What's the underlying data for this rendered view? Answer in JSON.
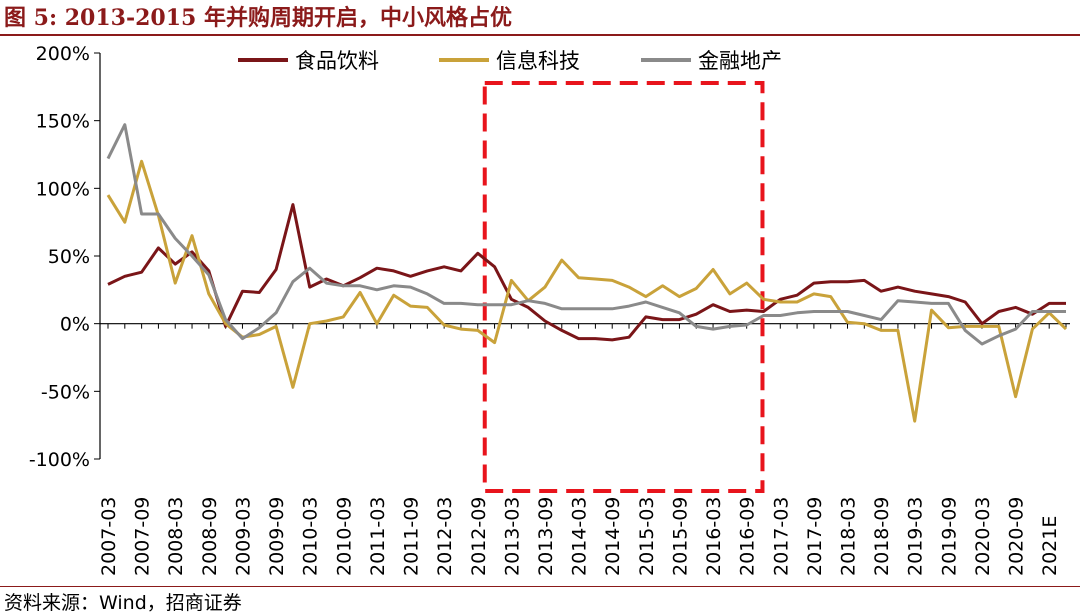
{
  "figure": {
    "title": "图 5: 2013-2015 年并购周期开启，中小风格占优",
    "source": "资料来源：Wind，招商证券"
  },
  "chart_data": {
    "type": "line",
    "ylim": [
      -100,
      200
    ],
    "y_ticks": [
      "200%",
      "150%",
      "100%",
      "50%",
      "0%",
      "-50%",
      "-100%"
    ],
    "y_tick_values": [
      200,
      150,
      100,
      50,
      0,
      -50,
      -100
    ],
    "grid": false,
    "legend_position": "top",
    "x_labels": [
      "2007-03",
      "2007-09",
      "2008-03",
      "2008-09",
      "2009-03",
      "2009-09",
      "2010-03",
      "2010-09",
      "2011-03",
      "2011-09",
      "2012-03",
      "2012-09",
      "2013-03",
      "2013-09",
      "2014-03",
      "2014-09",
      "2015-03",
      "2015-09",
      "2016-03",
      "2016-09",
      "2017-03",
      "2017-09",
      "2018-03",
      "2018-09",
      "2019-03",
      "2019-09",
      "2020-03",
      "2020-09",
      "2021E"
    ],
    "x_label_positions": [
      0,
      2,
      4,
      6,
      8,
      10,
      12,
      14,
      16,
      18,
      20,
      22,
      24,
      26,
      28,
      30,
      32,
      34,
      36,
      38,
      40,
      42,
      44,
      46,
      48,
      50,
      52,
      54,
      56
    ],
    "n_points": 58,
    "highlight": {
      "from_index": 22,
      "to_index": 39,
      "color": "#e8141c",
      "style": "dashed"
    },
    "series": [
      {
        "name": "食品饮料",
        "color": "#7a1518",
        "values": [
          29,
          35,
          38,
          56,
          44,
          53,
          39,
          -2,
          24,
          23,
          40,
          88,
          27,
          33,
          28,
          34,
          41,
          39,
          35,
          39,
          42,
          39,
          52,
          42,
          18,
          12,
          2,
          -5,
          -11,
          -11,
          -12,
          -10,
          5,
          3,
          3,
          7,
          14,
          9,
          10,
          9,
          18,
          21,
          30,
          31,
          31,
          32,
          24,
          27,
          24,
          22,
          20,
          16,
          0,
          9,
          12,
          7,
          15,
          15
        ]
      },
      {
        "name": "信息科技",
        "color": "#c9a23a",
        "values": [
          95,
          75,
          120,
          80,
          30,
          65,
          22,
          0,
          -10,
          -8,
          -2,
          -47,
          0,
          2,
          5,
          23,
          0,
          21,
          13,
          12,
          -1,
          -4,
          -5,
          -14,
          32,
          17,
          27,
          47,
          34,
          33,
          32,
          27,
          20,
          28,
          20,
          26,
          40,
          22,
          30,
          18,
          16,
          16,
          22,
          20,
          1,
          0,
          -5,
          -5,
          -72,
          10,
          -3,
          -2,
          -2,
          -2,
          -54,
          -4,
          8,
          -4
        ]
      },
      {
        "name": "金融地产",
        "color": "#8a8a8a",
        "values": [
          122,
          147,
          81,
          81,
          63,
          50,
          36,
          3,
          -11,
          -3,
          8,
          31,
          41,
          30,
          28,
          28,
          25,
          28,
          27,
          22,
          15,
          15,
          14,
          14,
          14,
          17,
          15,
          11,
          11,
          11,
          11,
          13,
          16,
          12,
          8,
          -2,
          -4,
          -2,
          -1,
          6,
          6,
          8,
          9,
          9,
          9,
          6,
          3,
          17,
          16,
          15,
          15,
          -5,
          -15,
          -9,
          -4,
          9,
          9,
          9
        ]
      }
    ]
  }
}
